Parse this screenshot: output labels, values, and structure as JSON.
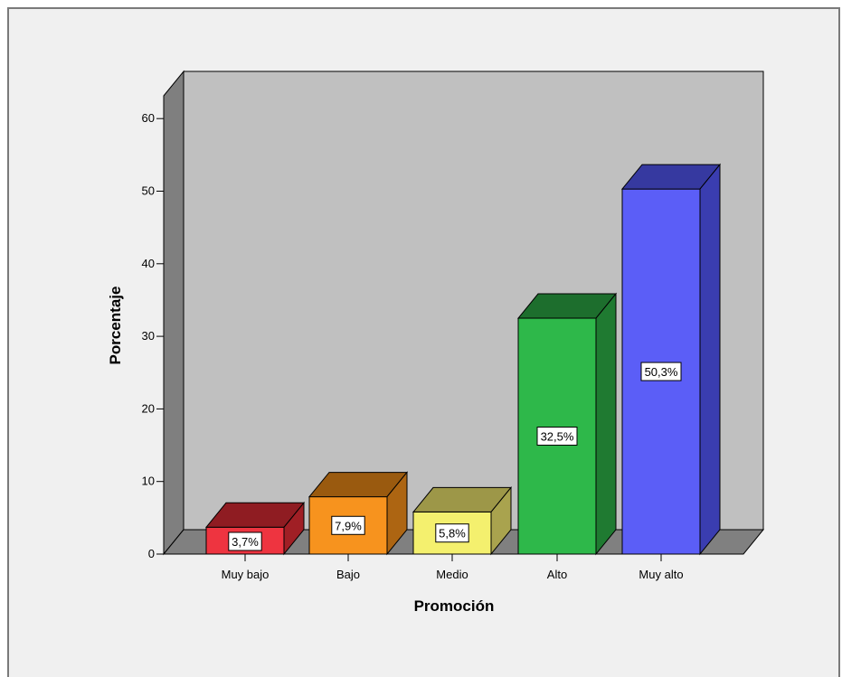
{
  "chart_data": {
    "type": "bar",
    "title": "",
    "xlabel": "Promoción",
    "ylabel": "Porcentaje",
    "categories": [
      "Muy bajo",
      "Bajo",
      "Medio",
      "Alto",
      "Muy alto"
    ],
    "values": [
      3.7,
      7.9,
      5.8,
      32.5,
      50.3
    ],
    "data_labels": [
      "3,7%",
      "7,9%",
      "5,8%",
      "32,5%",
      "50,3%"
    ],
    "ylim": [
      0,
      60
    ],
    "yticks": [
      "0",
      "10",
      "20",
      "30",
      "40",
      "50",
      "60"
    ],
    "grid": false,
    "three_d": true,
    "colors": {
      "front": [
        "#ee3440",
        "#f7931e",
        "#f4f06e",
        "#2eb84a",
        "#5b5ef7"
      ],
      "top": [
        "#8f1c22",
        "#9a5a0f",
        "#9d9748",
        "#1d6e2d",
        "#3639a0"
      ],
      "side": [
        "#a01f25",
        "#ad6512",
        "#a9a34e",
        "#1f7a31",
        "#3a3db0"
      ],
      "back_wall": "#c0c0c0",
      "side_wall": "#7f7f7f",
      "floor": "#808080"
    }
  }
}
